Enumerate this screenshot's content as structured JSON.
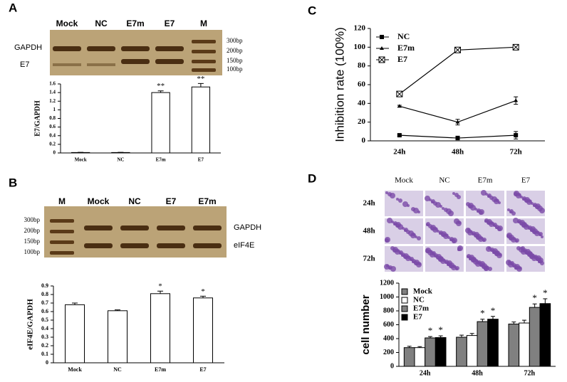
{
  "panels": [
    "A",
    "B",
    "C",
    "D"
  ],
  "gels": [
    {
      "lanes": [
        "Mock",
        "NC",
        "E7m",
        "E7",
        "M"
      ],
      "bands": [
        "GAPDH",
        "E7"
      ],
      "markers": [
        "300bp",
        "200bp",
        "150bp",
        "100bp"
      ]
    },
    {
      "lanes": [
        "M",
        "Mock",
        "NC",
        "E7",
        "E7m"
      ],
      "bands": [
        "GAPDH",
        "eIF4E"
      ],
      "markers": [
        "300bp",
        "200bp",
        "150bp",
        "100bp"
      ]
    }
  ],
  "micrographs": {
    "columns": [
      "Mock",
      "NC",
      "E7m",
      "E7"
    ],
    "rows": [
      "24h",
      "48h",
      "72h"
    ]
  },
  "chart_data": [
    {
      "type": "bar",
      "ylabel": "E7/GAPDH",
      "categories": [
        "Mock",
        "NC",
        "E7m",
        "E7"
      ],
      "values": [
        0.01,
        0.01,
        1.4,
        1.53
      ],
      "errors": [
        0.005,
        0.005,
        0.04,
        0.08
      ],
      "annotations": [
        null,
        null,
        "**",
        "**"
      ],
      "color": "#ffffff",
      "ylim": [
        0,
        1.6
      ],
      "yticks": [
        0,
        0.2,
        0.4,
        0.6,
        0.8,
        1,
        1.2,
        1.4,
        1.6
      ]
    },
    {
      "type": "bar",
      "ylabel": "eIF4E/GAPDH",
      "categories": [
        "Mock",
        "NC",
        "E7m",
        "E7"
      ],
      "values": [
        0.68,
        0.61,
        0.81,
        0.76
      ],
      "errors": [
        0.02,
        0.01,
        0.03,
        0.02
      ],
      "annotations": [
        null,
        null,
        "*",
        "*"
      ],
      "color": "#ffffff",
      "ylim": [
        0,
        0.9
      ],
      "yticks": [
        0,
        0.1,
        0.2,
        0.3,
        0.4,
        0.5,
        0.6,
        0.7,
        0.8,
        0.9
      ]
    },
    {
      "type": "line",
      "ylabel": "Inhibition rate (100%)",
      "categories": [
        "24h",
        "48h",
        "72h"
      ],
      "series": [
        {
          "name": "NC",
          "color": "#000000",
          "marker": "square",
          "values": [
            6,
            3,
            6
          ],
          "errors": [
            1,
            2,
            4
          ]
        },
        {
          "name": "E7m",
          "color": "#000000",
          "marker": "triangle",
          "values": [
            37,
            20,
            43
          ],
          "errors": [
            1,
            3,
            4
          ]
        },
        {
          "name": "E7",
          "color": "#000000",
          "marker": "boxed-x",
          "values": [
            50,
            97,
            100
          ],
          "errors": [
            2,
            2,
            2
          ]
        }
      ],
      "ylim": [
        0,
        120
      ],
      "yticks": [
        0,
        20,
        40,
        60,
        80,
        100,
        120
      ],
      "legend": "top-left"
    },
    {
      "type": "grouped-bar",
      "ylabel": "cell number",
      "categories": [
        "24h",
        "48h",
        "72h"
      ],
      "series": [
        {
          "name": "Mock",
          "color": "#808080",
          "values": [
            270,
            420,
            610
          ],
          "errors": [
            20,
            30,
            30
          ],
          "annotations": [
            null,
            null,
            null
          ]
        },
        {
          "name": "NC",
          "color": "#ffffff",
          "values": [
            270,
            445,
            625
          ],
          "errors": [
            15,
            30,
            40
          ],
          "annotations": [
            null,
            null,
            null
          ]
        },
        {
          "name": "E7m",
          "color": "#808080",
          "values": [
            410,
            645,
            850
          ],
          "errors": [
            20,
            35,
            50
          ],
          "annotations": [
            "*",
            "*",
            "*"
          ]
        },
        {
          "name": "E7",
          "color": "#000000",
          "values": [
            415,
            680,
            905
          ],
          "errors": [
            25,
            40,
            70
          ],
          "annotations": [
            "*",
            "*",
            "*"
          ]
        }
      ],
      "ylim": [
        0,
        1200
      ],
      "yticks": [
        0,
        200,
        400,
        600,
        800,
        1000,
        1200
      ],
      "legend": "top-left"
    }
  ]
}
